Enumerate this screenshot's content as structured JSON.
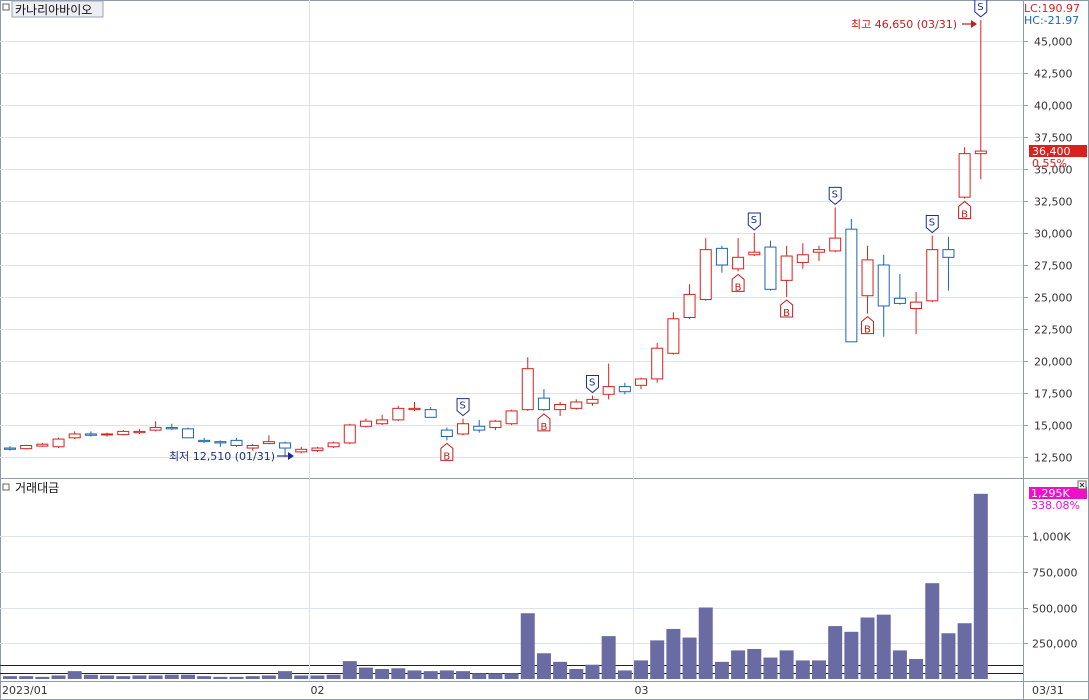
{
  "price_panel": {
    "title": "카나리아바이오",
    "lc": "LC:190.97",
    "hc": "HC:-21.97",
    "last_price": "36,400",
    "last_change": "0.55%",
    "high_note": "최고 46,650 (03/31)",
    "low_note": "최저 12,510 (01/31)"
  },
  "volume_panel": {
    "title": "거래대금",
    "last_value": "1,295K",
    "last_change": "338.08%"
  },
  "colors": {
    "up": "#d9211d",
    "down": "#1c64b4",
    "volume": "#6b6ba3",
    "grid": "#dde3ea",
    "signal_s": "#1d2e8a",
    "signal_b": "#c41c1c",
    "last_price_bg": "#d9211d",
    "last_volume_bg": "#ee10c8"
  },
  "chart_data": [
    {
      "type": "candlestick",
      "title": "카나리아바이오",
      "y_ticks": [
        "12,500",
        "15,000",
        "17,500",
        "20,000",
        "22,500",
        "25,000",
        "27,500",
        "30,000",
        "32,500",
        "35,000",
        "37,500",
        "40,000",
        "42,500",
        "45,000"
      ],
      "ylim": [
        11000,
        48000
      ],
      "x_labels": [
        "2023/01",
        "02",
        "03",
        "03/31"
      ],
      "ohlc": [
        [
          13200,
          13350,
          13000,
          13100
        ],
        [
          13150,
          13450,
          13100,
          13400
        ],
        [
          13350,
          13600,
          13300,
          13500
        ],
        [
          13300,
          14000,
          13200,
          13900
        ],
        [
          14000,
          14500,
          13900,
          14300
        ],
        [
          14300,
          14500,
          14100,
          14200
        ],
        [
          14300,
          14400,
          14100,
          14300
        ],
        [
          14250,
          14600,
          14200,
          14500
        ],
        [
          14400,
          14700,
          14300,
          14500
        ],
        [
          14600,
          15300,
          14500,
          14800
        ],
        [
          14800,
          15100,
          14600,
          14700
        ],
        [
          14700,
          14800,
          14000,
          14000
        ],
        [
          13800,
          14000,
          13600,
          13700
        ],
        [
          13700,
          13800,
          13300,
          13600
        ],
        [
          13800,
          14000,
          13300,
          13400
        ],
        [
          13200,
          13500,
          13000,
          13400
        ],
        [
          13550,
          14200,
          13500,
          13700
        ],
        [
          13600,
          13700,
          12510,
          13200
        ],
        [
          12900,
          13300,
          12800,
          13100
        ],
        [
          13000,
          13300,
          12900,
          13200
        ],
        [
          13300,
          13700,
          13200,
          13600
        ],
        [
          13600,
          15100,
          13500,
          15000
        ],
        [
          14900,
          15500,
          14800,
          15300
        ],
        [
          15100,
          15800,
          15000,
          15400
        ],
        [
          15400,
          16500,
          15300,
          16300
        ],
        [
          16200,
          16800,
          16100,
          16300
        ],
        [
          16200,
          16400,
          15600,
          15600
        ],
        [
          14600,
          14800,
          13800,
          14100
        ],
        [
          14300,
          15500,
          14200,
          15100
        ],
        [
          14900,
          15400,
          14400,
          14600
        ],
        [
          14800,
          15400,
          14600,
          15300
        ],
        [
          15100,
          16200,
          15000,
          16100
        ],
        [
          16200,
          20300,
          16100,
          19400
        ],
        [
          17100,
          17800,
          16100,
          16200
        ],
        [
          16200,
          16800,
          15700,
          16600
        ],
        [
          16300,
          17000,
          16200,
          16800
        ],
        [
          16700,
          17300,
          16500,
          17000
        ],
        [
          17400,
          19800,
          17000,
          18000
        ],
        [
          18000,
          18300,
          17400,
          17600
        ],
        [
          18100,
          18700,
          17800,
          18600
        ],
        [
          18600,
          21400,
          18300,
          21000
        ],
        [
          20600,
          23800,
          20500,
          23300
        ],
        [
          23400,
          26000,
          23300,
          25200
        ],
        [
          24800,
          29600,
          24700,
          28700
        ],
        [
          28800,
          29000,
          26900,
          27500
        ],
        [
          27200,
          29600,
          27000,
          28100
        ],
        [
          28300,
          30000,
          28200,
          28500
        ],
        [
          28900,
          29400,
          25500,
          25600
        ],
        [
          26300,
          29000,
          25000,
          28200
        ],
        [
          27700,
          29200,
          27200,
          28300
        ],
        [
          28500,
          29000,
          27800,
          28700
        ],
        [
          28600,
          32000,
          28500,
          29600
        ],
        [
          30300,
          31100,
          21500,
          21500
        ],
        [
          25100,
          29000,
          23700,
          27900
        ],
        [
          27500,
          28300,
          21900,
          24300
        ],
        [
          24900,
          26800,
          24400,
          24500
        ],
        [
          24100,
          25400,
          22100,
          24600
        ],
        [
          24700,
          29800,
          24600,
          28700
        ],
        [
          28700,
          29700,
          25500,
          28100
        ],
        [
          32800,
          36700,
          32700,
          36200
        ],
        [
          36200,
          46650,
          34200,
          36400
        ]
      ],
      "volume": {
        "title": "거래대금",
        "y_ticks": [
          "250,000",
          "500,000",
          "750,000",
          "1,000K"
        ],
        "ylim": [
          0,
          1400000
        ],
        "values": [
          20000,
          20000,
          15000,
          25000,
          55000,
          30000,
          25000,
          20000,
          25000,
          25000,
          30000,
          30000,
          20000,
          15000,
          15000,
          20000,
          25000,
          55000,
          25000,
          25000,
          30000,
          125000,
          80000,
          70000,
          75000,
          60000,
          55000,
          60000,
          55000,
          40000,
          40000,
          40000,
          460000,
          180000,
          120000,
          70000,
          100000,
          300000,
          60000,
          130000,
          270000,
          350000,
          290000,
          500000,
          120000,
          200000,
          210000,
          150000,
          200000,
          130000,
          130000,
          370000,
          330000,
          430000,
          450000,
          200000,
          140000,
          670000,
          320000,
          390000,
          1295000
        ]
      }
    }
  ]
}
